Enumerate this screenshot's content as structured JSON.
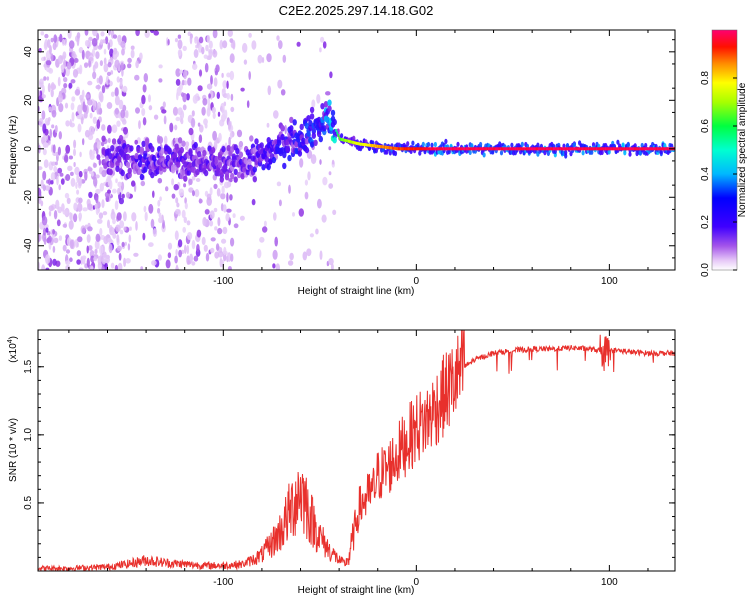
{
  "title": "C2E2.2025.297.14.18.G02",
  "colors": {
    "frame": "#000000",
    "series": "#e8302c",
    "colormap": [
      "#ffffff",
      "#d9b3f5",
      "#8a2be2",
      "#3f00ff",
      "#1b1bff",
      "#00b7ff",
      "#00ffd0",
      "#00ff40",
      "#a8ff00",
      "#ffff00",
      "#ff8c00",
      "#ff1000",
      "#ff0070"
    ]
  },
  "chart_data": [
    {
      "type": "heatmap",
      "xlabel": "Height of straight line (km)",
      "ylabel": "Frequency (Hz)",
      "xlim": [
        -196,
        134
      ],
      "ylim": [
        -50,
        49
      ],
      "xticks": [
        -100,
        0,
        100
      ],
      "xtick_labels": [
        "-100",
        "0",
        "100"
      ],
      "yticks": [
        40,
        20,
        0,
        -20,
        -40
      ],
      "ytick_labels": [
        "40",
        "20",
        "0",
        "-20",
        "-40"
      ],
      "ridge": {
        "x": [
          -160,
          -140,
          -120,
          -100,
          -90,
          -80,
          -70,
          -60,
          -50,
          -45,
          -40,
          -30,
          -20,
          -10,
          0,
          10,
          50,
          90,
          134
        ],
        "y": [
          -3,
          -4,
          -5,
          -7,
          -6,
          -3,
          2,
          5,
          10,
          13,
          4,
          2,
          1,
          0,
          0,
          0,
          0,
          0,
          0
        ],
        "amplitude": [
          0.2,
          0.25,
          0.22,
          0.2,
          0.22,
          0.25,
          0.3,
          0.3,
          0.35,
          0.4,
          0.6,
          0.7,
          0.8,
          0.85,
          0.9,
          0.95,
          0.95,
          0.95,
          0.95
        ]
      },
      "colorbar": {
        "label": "Normalized spectral amplitude",
        "range": [
          0,
          1
        ],
        "ticks": [
          0.8,
          0.6,
          0.4,
          0.2,
          0.0
        ],
        "tick_labels": [
          "0.8",
          "0.6",
          "0.4",
          "0.2",
          "0.0"
        ]
      }
    },
    {
      "type": "line",
      "xlabel": "Height of straight line (km)",
      "ylabel": "SNR (10 * v/v)",
      "y_multiplier_label": "(x10",
      "y_multiplier_exponent": "4",
      "y_multiplier_suffix": ")",
      "xlim": [
        -196,
        134
      ],
      "ylim": [
        0,
        1.77
      ],
      "xticks": [
        -100,
        0,
        100
      ],
      "xtick_labels": [
        "-100",
        "0",
        "100"
      ],
      "yticks": [
        0.5,
        1.0,
        1.5
      ],
      "ytick_labels": [
        "0.5",
        "1.0",
        "1.5"
      ],
      "series": [
        {
          "name": "SNR",
          "x": [
            -196,
            -180,
            -160,
            -150,
            -140,
            -130,
            -120,
            -110,
            -100,
            -90,
            -85,
            -80,
            -75,
            -70,
            -65,
            -62,
            -60,
            -57,
            -55,
            -50,
            -45,
            -40,
            -37,
            -35,
            -32,
            -30,
            -28,
            -25,
            -22,
            -20,
            -15,
            -10,
            -5,
            0,
            5,
            10,
            15,
            20,
            25,
            30,
            40,
            50,
            60,
            70,
            80,
            90,
            95,
            98,
            100,
            105,
            110,
            120,
            134
          ],
          "y": [
            0.02,
            0.02,
            0.03,
            0.05,
            0.08,
            0.06,
            0.05,
            0.04,
            0.04,
            0.05,
            0.08,
            0.12,
            0.2,
            0.3,
            0.45,
            0.55,
            0.6,
            0.5,
            0.4,
            0.25,
            0.15,
            0.08,
            0.05,
            0.1,
            0.3,
            0.45,
            0.5,
            0.55,
            0.6,
            0.7,
            0.75,
            0.85,
            0.95,
            1.05,
            1.1,
            1.2,
            1.3,
            1.4,
            1.5,
            1.55,
            1.6,
            1.62,
            1.63,
            1.63,
            1.64,
            1.63,
            1.62,
            1.6,
            1.62,
            1.62,
            1.61,
            1.6,
            1.6
          ]
        }
      ]
    }
  ]
}
